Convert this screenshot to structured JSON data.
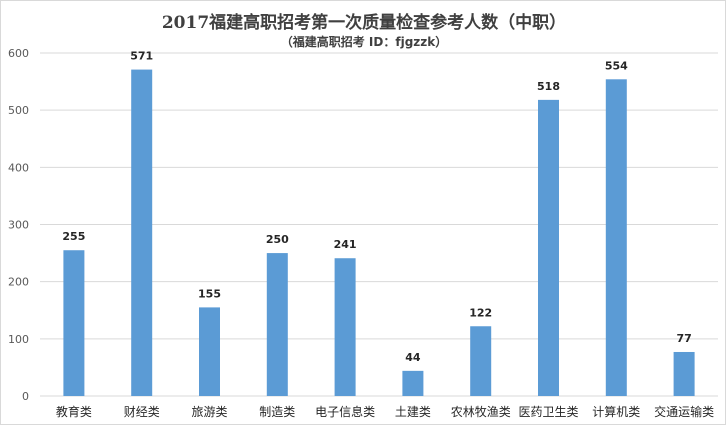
{
  "chart_data": {
    "type": "bar",
    "title": "2017福建高职招考第一次质量检查参考人数（中职）",
    "subtitle": "（福建高职招考 ID：fjgzzk）",
    "categories": [
      "教育类",
      "财经类",
      "旅游类",
      "制造类",
      "电子信息类",
      "土建类",
      "农林牧渔类",
      "医药卫生类",
      "计算机类",
      "交通运输类"
    ],
    "values": [
      255,
      571,
      155,
      250,
      241,
      44,
      122,
      518,
      554,
      77
    ],
    "ylim": [
      0,
      600
    ],
    "yticks": [
      0,
      100,
      200,
      300,
      400,
      500,
      600
    ],
    "grid": true,
    "legend": "none",
    "bar_color": "#5b9bd5",
    "grid_color": "#d9d9d9"
  }
}
